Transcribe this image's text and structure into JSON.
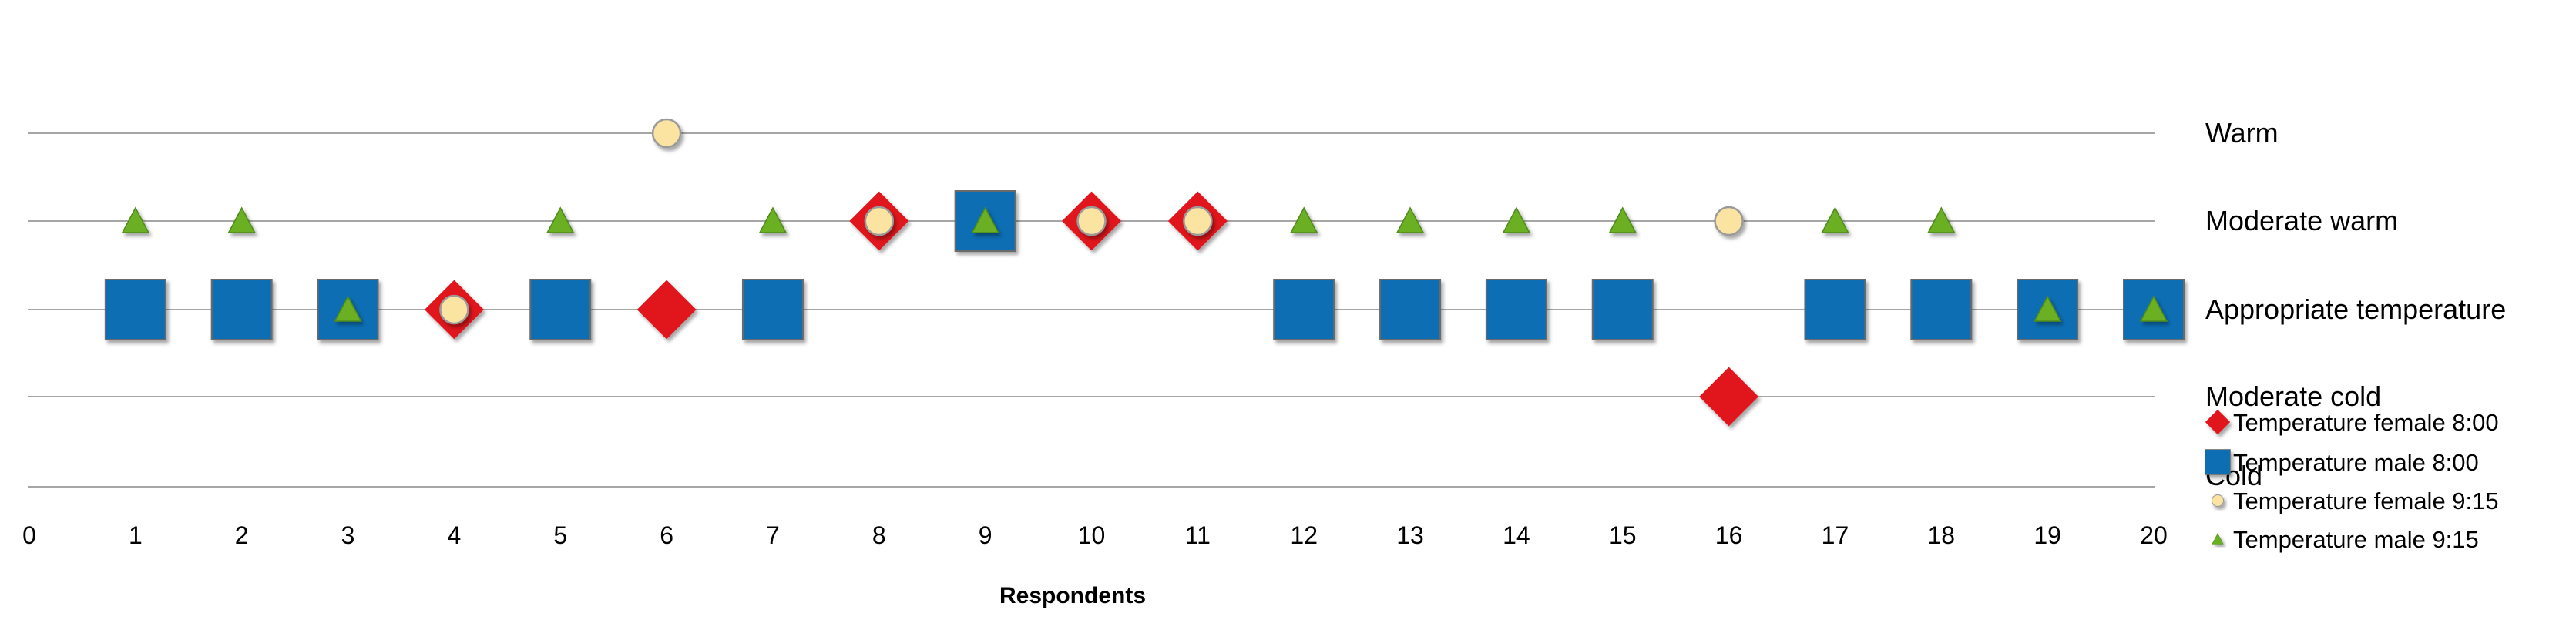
{
  "chart_data": {
    "type": "scatter",
    "xlabel": "Respondents",
    "x_ticks": [
      0,
      1,
      2,
      3,
      4,
      5,
      6,
      7,
      8,
      9,
      10,
      11,
      12,
      13,
      14,
      15,
      16,
      17,
      18,
      19,
      20
    ],
    "xlim": [
      0,
      20
    ],
    "y_levels": [
      "Cold",
      "Moderate cold",
      "Appropriate temperature",
      "Moderate warm",
      "Warm"
    ],
    "grid": true,
    "legend_position": "bottom-right",
    "series": [
      {
        "name": "Temperature female 8:00",
        "marker": "diamond",
        "color": "#e0141e",
        "points": [
          {
            "x": 4,
            "y": "Appropriate temperature"
          },
          {
            "x": 6,
            "y": "Appropriate temperature"
          },
          {
            "x": 8,
            "y": "Moderate warm"
          },
          {
            "x": 10,
            "y": "Moderate warm"
          },
          {
            "x": 11,
            "y": "Moderate warm"
          },
          {
            "x": 16,
            "y": "Moderate cold"
          }
        ]
      },
      {
        "name": "Temperature male 8:00",
        "marker": "square",
        "color": "#0f6eb4",
        "points": [
          {
            "x": 1,
            "y": "Appropriate temperature"
          },
          {
            "x": 2,
            "y": "Appropriate temperature"
          },
          {
            "x": 3,
            "y": "Appropriate temperature"
          },
          {
            "x": 5,
            "y": "Appropriate temperature"
          },
          {
            "x": 7,
            "y": "Appropriate temperature"
          },
          {
            "x": 9,
            "y": "Moderate warm"
          },
          {
            "x": 12,
            "y": "Appropriate temperature"
          },
          {
            "x": 13,
            "y": "Appropriate temperature"
          },
          {
            "x": 14,
            "y": "Appropriate temperature"
          },
          {
            "x": 15,
            "y": "Appropriate temperature"
          },
          {
            "x": 17,
            "y": "Appropriate temperature"
          },
          {
            "x": 18,
            "y": "Appropriate temperature"
          },
          {
            "x": 19,
            "y": "Appropriate temperature"
          },
          {
            "x": 20,
            "y": "Appropriate temperature"
          }
        ]
      },
      {
        "name": "Temperature female 9:15",
        "marker": "circle",
        "color": "#fbe3a2",
        "points": [
          {
            "x": 4,
            "y": "Appropriate temperature"
          },
          {
            "x": 6,
            "y": "Warm"
          },
          {
            "x": 8,
            "y": "Moderate warm"
          },
          {
            "x": 10,
            "y": "Moderate warm"
          },
          {
            "x": 11,
            "y": "Moderate warm"
          },
          {
            "x": 16,
            "y": "Moderate warm"
          }
        ]
      },
      {
        "name": "Temperature male 9:15",
        "marker": "triangle",
        "color": "#6ab023",
        "points": [
          {
            "x": 1,
            "y": "Moderate warm"
          },
          {
            "x": 2,
            "y": "Moderate warm"
          },
          {
            "x": 3,
            "y": "Appropriate temperature"
          },
          {
            "x": 5,
            "y": "Moderate warm"
          },
          {
            "x": 7,
            "y": "Moderate warm"
          },
          {
            "x": 9,
            "y": "Moderate warm"
          },
          {
            "x": 12,
            "y": "Moderate warm"
          },
          {
            "x": 13,
            "y": "Moderate warm"
          },
          {
            "x": 14,
            "y": "Moderate warm"
          },
          {
            "x": 15,
            "y": "Moderate warm"
          },
          {
            "x": 17,
            "y": "Moderate warm"
          },
          {
            "x": 18,
            "y": "Moderate warm"
          },
          {
            "x": 19,
            "y": "Appropriate temperature"
          },
          {
            "x": 20,
            "y": "Appropriate temperature"
          }
        ]
      }
    ]
  }
}
